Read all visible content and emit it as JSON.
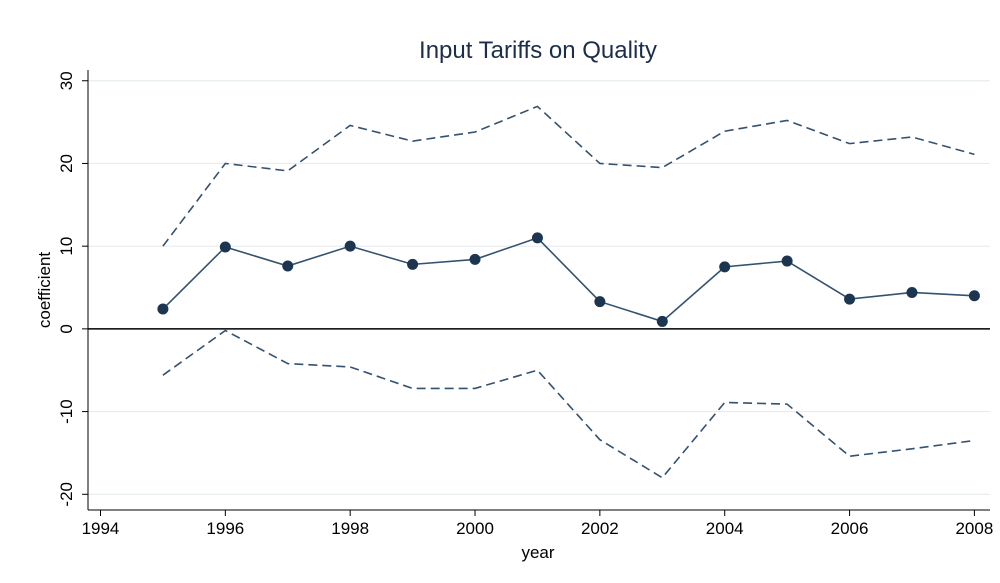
{
  "chart_data": {
    "type": "line",
    "title": "Input Tariffs on Quality",
    "x_label": "year",
    "y_label": "coefficient",
    "x": [
      1995,
      1996,
      1997,
      1998,
      1999,
      2000,
      2001,
      2002,
      2003,
      2004,
      2005,
      2006,
      2007,
      2008
    ],
    "series": [
      {
        "color": "#34526e",
        "style": "solid",
        "markers": true,
        "values": [
          2.4,
          9.9,
          7.6,
          10.0,
          7.8,
          8.4,
          11.0,
          3.3,
          0.9,
          7.5,
          8.2,
          3.6,
          4.4,
          4.0
        ]
      },
      {
        "color": "#34526e",
        "style": "dashed",
        "markers": false,
        "values": [
          10.0,
          20.0,
          19.1,
          24.6,
          22.7,
          23.8,
          26.9,
          20.0,
          19.5,
          23.9,
          25.2,
          22.4,
          23.2,
          21.1
        ]
      },
      {
        "color": "#34526e",
        "style": "dashed",
        "markers": false,
        "values": [
          -5.6,
          -0.2,
          -4.2,
          -4.6,
          -7.2,
          -7.2,
          -5.0,
          -13.4,
          -18.0,
          -8.9,
          -9.1,
          -15.4,
          -14.5,
          -13.5
        ]
      }
    ],
    "reference_line": 0,
    "xlim": [
      1993.8,
      2008.25
    ],
    "xticks": [
      1994,
      1996,
      1998,
      2000,
      2002,
      2004,
      2006,
      2008
    ],
    "ylim": [
      -21.9,
      31.3
    ],
    "yticks": [
      -20,
      -10,
      0,
      10,
      20,
      30
    ],
    "grid": true
  }
}
